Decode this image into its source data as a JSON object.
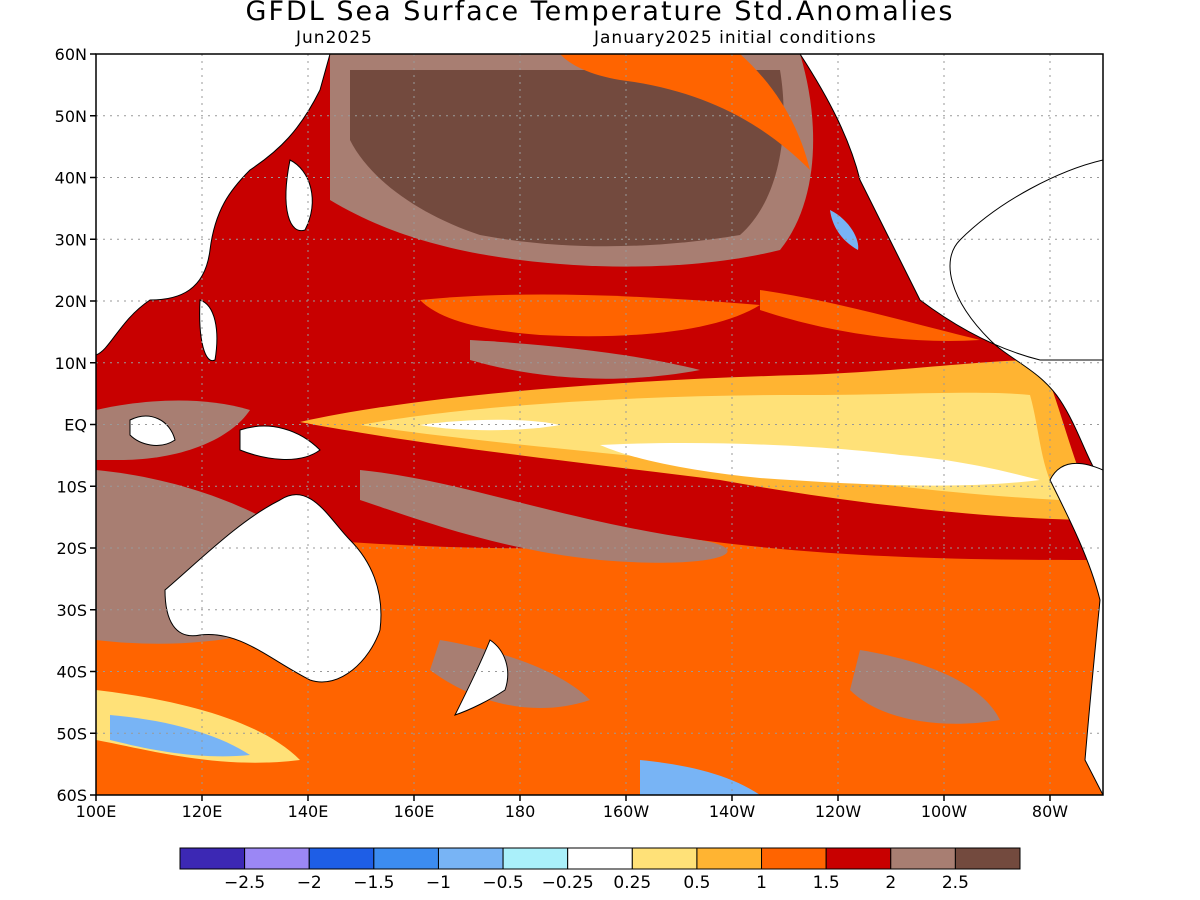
{
  "title": "GFDL Sea Surface Temperature Std.Anomalies",
  "subtitle_left": "Jun2025",
  "subtitle_right": "January2025 initial conditions",
  "map": {
    "lat_ticks": [
      "60N",
      "50N",
      "40N",
      "30N",
      "20N",
      "10N",
      "EQ",
      "10S",
      "20S",
      "30S",
      "40S",
      "50S",
      "60S"
    ],
    "lon_ticks": [
      "100E",
      "120E",
      "140E",
      "160E",
      "180",
      "160W",
      "140W",
      "120W",
      "100W",
      "80W"
    ],
    "lon_range": [
      100,
      290
    ],
    "lat_range": [
      -60,
      60
    ],
    "grid": true,
    "land_color": "#ffffff"
  },
  "colorbar": {
    "bins": [
      {
        "color": "#3c28b4"
      },
      {
        "color": "#9b87f5"
      },
      {
        "color": "#1e5ee6"
      },
      {
        "color": "#3c8cf0"
      },
      {
        "color": "#78b4f5"
      },
      {
        "color": "#aaf0fa"
      },
      {
        "color": "#ffffff"
      },
      {
        "color": "#ffe178"
      },
      {
        "color": "#ffb432"
      },
      {
        "color": "#ff6400"
      },
      {
        "color": "#c80000"
      },
      {
        "color": "#a87e72"
      },
      {
        "color": "#734a3e"
      }
    ],
    "labels": [
      "−2.5",
      "−2",
      "−1.5",
      "−1",
      "−0.5",
      "−0.25",
      "0.25",
      "0.5",
      "1",
      "1.5",
      "2",
      "2.5"
    ]
  }
}
